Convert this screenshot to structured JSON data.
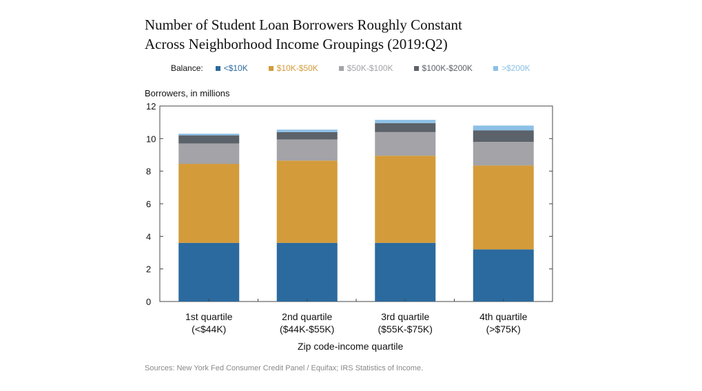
{
  "title_line1": "Number of Student Loan Borrowers Roughly Constant",
  "title_line2": "Across Neighborhood Income Groupings (2019:Q2)",
  "legend_lead": "Balance:",
  "xlabel": "Zip code-income quartile",
  "ylabel": "Borrowers, in millions",
  "source": "Sources: New York Fed Consumer Credit Panel / Equifax; IRS Statistics of Income.",
  "chart_data": {
    "type": "bar",
    "stacked": true,
    "title": "Number of Student Loan Borrowers Roughly Constant Across Neighborhood Income Groupings (2019:Q2)",
    "xlabel": "Zip code-income quartile",
    "ylabel": "Borrowers, in millions",
    "ylim": [
      0,
      12
    ],
    "yticks": [
      0,
      2,
      4,
      6,
      8,
      10,
      12
    ],
    "grid": false,
    "legend_placement": "top",
    "categories": [
      {
        "line1": "1st quartile",
        "line2": "(<$44K)"
      },
      {
        "line1": "2nd quartile",
        "line2": "($44K-$55K)"
      },
      {
        "line1": "3rd quartile",
        "line2": "($55K-$75K)"
      },
      {
        "line1": "4th quartile",
        "line2": "(>$75K)"
      }
    ],
    "series": [
      {
        "name": "<$10K",
        "color": "#2b6a9e",
        "values": [
          3.6,
          3.6,
          3.6,
          3.2
        ]
      },
      {
        "name": "$10K-$50K",
        "color": "#d39b3a",
        "values": [
          4.85,
          5.05,
          5.35,
          5.15
        ]
      },
      {
        "name": "$50K-$100K",
        "color": "#a3a3a8",
        "values": [
          1.25,
          1.3,
          1.45,
          1.45
        ]
      },
      {
        "name": "$100K-$200K",
        "color": "#5c6269",
        "values": [
          0.5,
          0.45,
          0.55,
          0.7
        ]
      },
      {
        "name": ">$200K",
        "color": "#8cc0e6",
        "values": [
          0.1,
          0.15,
          0.2,
          0.3
        ]
      }
    ]
  }
}
